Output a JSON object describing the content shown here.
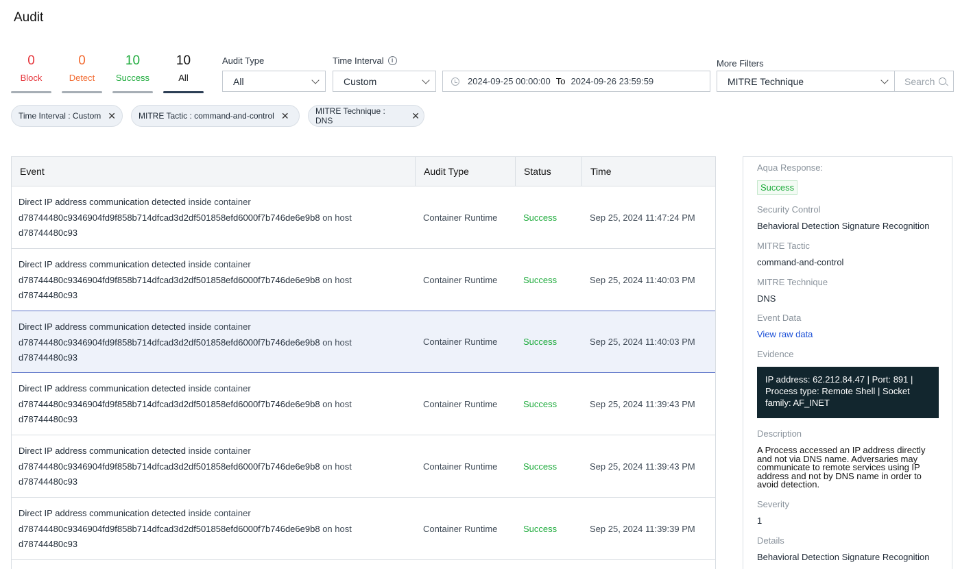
{
  "page": {
    "title": "Audit"
  },
  "counters": [
    {
      "value": "0",
      "label": "Block"
    },
    {
      "value": "0",
      "label": "Detect"
    },
    {
      "value": "10",
      "label": "Success"
    },
    {
      "value": "10",
      "label": "All"
    }
  ],
  "filters": {
    "audit_type": {
      "label": "Audit Type",
      "value": "All"
    },
    "time_interval": {
      "label": "Time Interval",
      "value": "Custom"
    },
    "date_range": {
      "from": "2024-09-25 00:00:00",
      "to_label": "To",
      "to": "2024-09-26 23:59:59"
    },
    "more_filters": {
      "label": "More Filters",
      "value": "MITRE Technique"
    },
    "search": {
      "placeholder": "Search"
    }
  },
  "chips": [
    "Time Interval : Custom",
    "MITRE Tactic : command-and-control",
    "MITRE Technique : DNS"
  ],
  "table": {
    "headers": [
      "Event",
      "Audit Type",
      "Status",
      "Time"
    ],
    "rows": [
      {
        "title": "Direct IP address communication detected",
        "inside": "inside container",
        "container": "d78744480c9346904fd9f858b714dfcad3d2df501858efd6000f7b746de6e9b8",
        "on_host": "on host",
        "host": "d78744480c93",
        "type": "Container Runtime",
        "status": "Success",
        "time": "Sep 25, 2024 11:47:24 PM"
      },
      {
        "title": "Direct IP address communication detected",
        "inside": "inside container",
        "container": "d78744480c9346904fd9f858b714dfcad3d2df501858efd6000f7b746de6e9b8",
        "on_host": "on host",
        "host": "d78744480c93",
        "type": "Container Runtime",
        "status": "Success",
        "time": "Sep 25, 2024 11:40:03 PM"
      },
      {
        "title": "Direct IP address communication detected",
        "inside": "inside container",
        "container": "d78744480c9346904fd9f858b714dfcad3d2df501858efd6000f7b746de6e9b8",
        "on_host": "on host",
        "host": "d78744480c93",
        "type": "Container Runtime",
        "status": "Success",
        "time": "Sep 25, 2024 11:40:03 PM"
      },
      {
        "title": "Direct IP address communication detected",
        "inside": "inside container",
        "container": "d78744480c9346904fd9f858b714dfcad3d2df501858efd6000f7b746de6e9b8",
        "on_host": "on host",
        "host": "d78744480c93",
        "type": "Container Runtime",
        "status": "Success",
        "time": "Sep 25, 2024 11:39:43 PM"
      },
      {
        "title": "Direct IP address communication detected",
        "inside": "inside container",
        "container": "d78744480c9346904fd9f858b714dfcad3d2df501858efd6000f7b746de6e9b8",
        "on_host": "on host",
        "host": "d78744480c93",
        "type": "Container Runtime",
        "status": "Success",
        "time": "Sep 25, 2024 11:39:43 PM"
      },
      {
        "title": "Direct IP address communication detected",
        "inside": "inside container",
        "container": "d78744480c9346904fd9f858b714dfcad3d2df501858efd6000f7b746de6e9b8",
        "on_host": "on host",
        "host": "d78744480c93",
        "type": "Container Runtime",
        "status": "Success",
        "time": "Sep 25, 2024 11:39:39 PM"
      }
    ]
  },
  "detail": {
    "response_label": "Aqua Response:",
    "response_value": "Success",
    "security_control_label": "Security Control",
    "security_control_value": "Behavioral Detection Signature Recognition",
    "tactic_label": "MITRE Tactic",
    "tactic_value": "command-and-control",
    "technique_label": "MITRE Technique",
    "technique_value": "DNS",
    "event_data_label": "Event Data",
    "event_data_link": "View raw data",
    "evidence_label": "Evidence",
    "evidence_value": "IP address: 62.212.84.47 | Port: 891 | Process type: Remote Shell | Socket family: AF_INET",
    "description_label": "Description",
    "description_value": "A Process accessed an IP address directly and not via DNS name. Adversaries may communicate to remote services using IP address and not by DNS name in order to avoid detection.",
    "severity_label": "Severity",
    "severity_value": "1",
    "details_label": "Details",
    "details_value": "Behavioral Detection Signature Recognition"
  }
}
